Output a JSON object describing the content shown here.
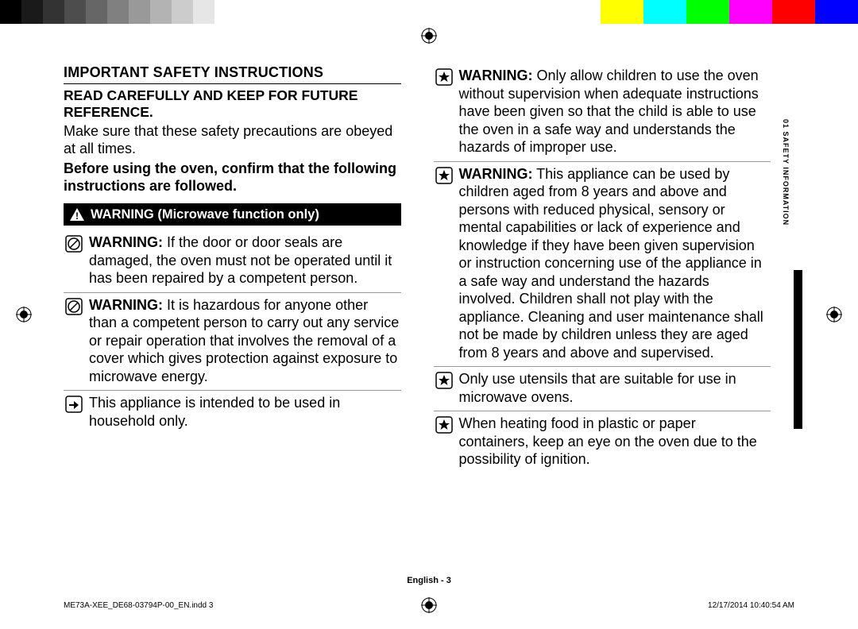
{
  "color_bar": {
    "left_gradient": [
      "#000000",
      "#1a1a1a",
      "#333333",
      "#4d4d4d",
      "#666666",
      "#808080",
      "#999999",
      "#b3b3b3",
      "#cccccc",
      "#e6e6e6",
      "#ffffff"
    ],
    "right_solids": [
      "#ffff00",
      "#00ffff",
      "#00ff00",
      "#ff00ff",
      "#ff0000",
      "#0000ff"
    ],
    "swatch_width": 27
  },
  "side_tab": "01  SAFETY INFORMATION",
  "title": "IMPORTANT SAFETY INSTRUCTIONS",
  "subtitle": "READ CAREFULLY AND KEEP FOR FUTURE REFERENCE.",
  "intro1": "Make sure that these safety precautions are obeyed at all times.",
  "intro2": "Before using the oven, confirm that the following instructions are followed.",
  "warn_header": "WARNING (Microwave function only)",
  "col1_items": [
    {
      "icon": "prohibit",
      "bold": "WARNING:",
      "text": " If the door or door seals are damaged, the oven must not be operated until it has been repaired by a competent person."
    },
    {
      "icon": "prohibit",
      "bold": "WARNING:",
      "text": " It is hazardous for anyone other than a competent person to carry out any service or repair operation that involves the removal of a cover which gives protection against exposure to microwave energy."
    },
    {
      "icon": "hand",
      "bold": "",
      "text": "This appliance is intended to be used in household only."
    }
  ],
  "col2_items": [
    {
      "icon": "star",
      "bold": "WARNING:",
      "text": " Only allow children to use the oven without supervision when adequate instructions have been given so that the child is able to use the oven in a safe way and understands the hazards of improper use."
    },
    {
      "icon": "star",
      "bold": "WARNING:",
      "text": " This appliance can be used by children aged from 8 years and above and persons with reduced physical, sensory or mental capabilities or lack of experience and knowledge if they have been given supervision or instruction concerning use of the appliance in a safe way and understand the hazards involved. Children shall not play with the appliance. Cleaning and user maintenance shall not be made by children unless they are aged from 8 years and above and supervised."
    },
    {
      "icon": "star",
      "bold": "",
      "text": "Only use utensils that are suitable for use in microwave ovens."
    },
    {
      "icon": "star",
      "bold": "",
      "text": "When heating food in plastic or paper containers, keep an eye on the oven due to the possibility of ignition."
    }
  ],
  "footer_center": "English - 3",
  "footer_left": "ME73A-XEE_DE68-03794P-00_EN.indd   3",
  "footer_right": "12/17/2014   10:40:54 AM"
}
